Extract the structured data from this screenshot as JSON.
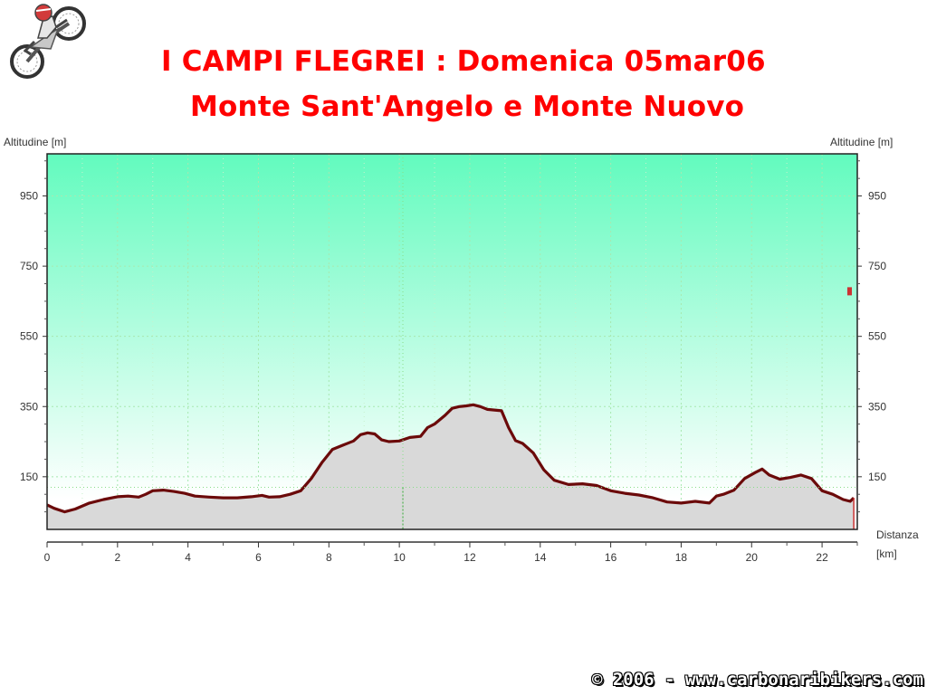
{
  "header": {
    "title_line1": "I CAMPI FLEGREI : Domenica 05mar06",
    "title_line2": "Monte Sant'Angelo e Monte Nuovo"
  },
  "footer": {
    "copyright": "© 2006 - www.carbonaribikers.com"
  },
  "logo": {
    "icon": "motorcycle-rider-icon"
  },
  "colors": {
    "title": "#ff0000",
    "profile_line": "#6b0a0a",
    "profile_fill": "#d9d9d9",
    "sky_top": "#62fbbe",
    "sky_bottom": "#ffffff"
  },
  "chart_data": {
    "type": "area",
    "title": "",
    "ylabel_left": "Altitudine [m]",
    "ylabel_right": "Altitudine [m]",
    "xlabel": "Distanza",
    "xunit": "[km]",
    "xlim": [
      0,
      23
    ],
    "ylim": [
      0,
      1070
    ],
    "xticks": [
      0,
      2,
      4,
      6,
      8,
      10,
      12,
      14,
      16,
      18,
      20,
      22
    ],
    "yticks": [
      150,
      350,
      550,
      750,
      950
    ],
    "grid": true,
    "marker_x": 10.1,
    "marker_y": 120,
    "series": [
      {
        "x": [
          0,
          0.2,
          0.5,
          0.8,
          1.2,
          1.6,
          2.0,
          2.3,
          2.6,
          2.8,
          3.0,
          3.3,
          3.6,
          3.9,
          4.2,
          4.6,
          5.0,
          5.4,
          5.8,
          6.1,
          6.3,
          6.6,
          6.9,
          7.2,
          7.5,
          7.8,
          8.1,
          8.4,
          8.7,
          8.9,
          9.1,
          9.3,
          9.5,
          9.7,
          10.0,
          10.3,
          10.6,
          10.8,
          11.0,
          11.3,
          11.5,
          11.7,
          11.9,
          12.1,
          12.3,
          12.5,
          12.7,
          12.9,
          13.1,
          13.3,
          13.5,
          13.8,
          14.1,
          14.4,
          14.8,
          15.2,
          15.6,
          16.0,
          16.4,
          16.8,
          17.2,
          17.6,
          18.0,
          18.4,
          18.8,
          19.0,
          19.2,
          19.5,
          19.8,
          20.1,
          20.3,
          20.5,
          20.8,
          21.1,
          21.4,
          21.7,
          22.0,
          22.3,
          22.6,
          22.8,
          22.9
        ],
        "y": [
          70,
          60,
          50,
          58,
          75,
          85,
          93,
          95,
          92,
          100,
          110,
          112,
          108,
          103,
          95,
          92,
          90,
          90,
          93,
          97,
          92,
          93,
          100,
          110,
          145,
          190,
          228,
          240,
          252,
          270,
          275,
          272,
          255,
          250,
          252,
          262,
          265,
          290,
          300,
          325,
          345,
          350,
          352,
          355,
          350,
          342,
          340,
          338,
          290,
          253,
          245,
          218,
          170,
          140,
          128,
          130,
          125,
          110,
          103,
          98,
          90,
          78,
          75,
          80,
          75,
          95,
          100,
          112,
          145,
          162,
          172,
          155,
          143,
          148,
          155,
          145,
          110,
          100,
          85,
          80,
          90
        ]
      }
    ]
  }
}
